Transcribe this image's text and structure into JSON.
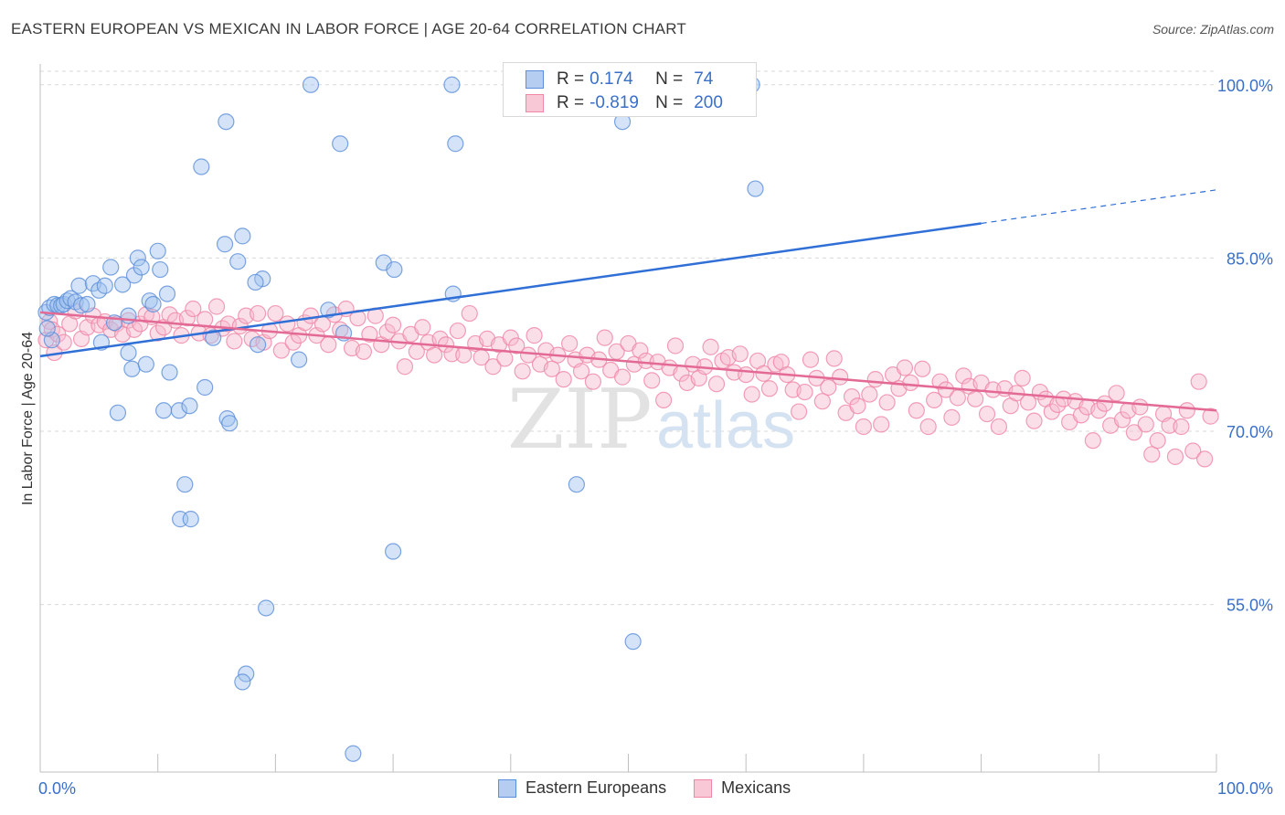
{
  "title": "EASTERN EUROPEAN VS MEXICAN IN LABOR FORCE | AGE 20-64 CORRELATION CHART",
  "source": "Source: ZipAtlas.com",
  "watermark": {
    "zip": "ZIP",
    "atlas": "atlas"
  },
  "legend_stats": [
    {
      "r_label": "R =",
      "r_value": "0.174",
      "n_label": "N =",
      "n_value": "74",
      "color": "#5b8fd9"
    },
    {
      "r_label": "R =",
      "r_value": "-0.819",
      "n_label": "N =",
      "n_value": "200",
      "color": "#ef86a6"
    }
  ],
  "legend_bottom": [
    {
      "label": "Eastern Europeans",
      "color": "#5b8fd9"
    },
    {
      "label": "Mexicans",
      "color": "#ef86a6"
    }
  ],
  "chart_data": {
    "type": "scatter",
    "title": "EASTERN EUROPEAN VS MEXICAN IN LABOR FORCE | AGE 20-64 CORRELATION CHART",
    "xlabel": "",
    "ylabel": "In Labor Force | Age 20-64",
    "xlim": [
      0,
      100
    ],
    "ylim": [
      40.5,
      101.8
    ],
    "x_tick_labels": [
      "0.0%",
      "100.0%"
    ],
    "y_ticks": [
      100,
      85,
      70,
      55
    ],
    "y_tick_labels": [
      "100.0%",
      "85.0%",
      "70.0%",
      "55.0%"
    ],
    "grid": true,
    "series": [
      {
        "name": "Eastern Europeans",
        "color": "#5b8fd9",
        "trend": {
          "x0": 0,
          "y0": 76.5,
          "x1": 80,
          "y1": 88.0,
          "dash_to_x": 100,
          "dash_to_y": 90.9
        },
        "points": [
          [
            0.5,
            80.3
          ],
          [
            0.8,
            80.7
          ],
          [
            1.0,
            77.9
          ],
          [
            0.6,
            78.9
          ],
          [
            1.2,
            81.0
          ],
          [
            1.5,
            80.9
          ],
          [
            1.8,
            80.9
          ],
          [
            2.0,
            81.0
          ],
          [
            2.3,
            81.3
          ],
          [
            2.6,
            81.5
          ],
          [
            3.0,
            81.2
          ],
          [
            3.5,
            80.9
          ],
          [
            4.0,
            81.0
          ],
          [
            3.3,
            82.6
          ],
          [
            4.5,
            82.8
          ],
          [
            5.0,
            82.2
          ],
          [
            5.5,
            82.6
          ],
          [
            6.0,
            84.2
          ],
          [
            5.2,
            77.7
          ],
          [
            6.3,
            79.4
          ],
          [
            7.0,
            82.7
          ],
          [
            7.5,
            76.8
          ],
          [
            7.8,
            75.4
          ],
          [
            8.0,
            83.5
          ],
          [
            8.3,
            85.0
          ],
          [
            8.6,
            84.2
          ],
          [
            9.0,
            75.8
          ],
          [
            9.3,
            81.3
          ],
          [
            9.6,
            81.0
          ],
          [
            10.0,
            85.6
          ],
          [
            10.2,
            84.0
          ],
          [
            10.8,
            81.9
          ],
          [
            11.0,
            75.1
          ],
          [
            6.6,
            71.6
          ],
          [
            10.5,
            71.8
          ],
          [
            11.8,
            71.8
          ],
          [
            12.7,
            72.2
          ],
          [
            12.3,
            65.4
          ],
          [
            11.9,
            62.4
          ],
          [
            12.8,
            62.4
          ],
          [
            14.0,
            73.8
          ],
          [
            13.7,
            92.9
          ],
          [
            14.7,
            78.1
          ],
          [
            15.7,
            86.2
          ],
          [
            15.8,
            96.8
          ],
          [
            15.9,
            71.1
          ],
          [
            16.1,
            70.7
          ],
          [
            16.8,
            84.7
          ],
          [
            17.2,
            86.9
          ],
          [
            18.9,
            83.2
          ],
          [
            18.3,
            82.9
          ],
          [
            18.5,
            77.5
          ],
          [
            19.2,
            54.7
          ],
          [
            23.0,
            100.0
          ],
          [
            25.5,
            94.9
          ],
          [
            25.8,
            78.5
          ],
          [
            22.0,
            76.2
          ],
          [
            17.5,
            49.0
          ],
          [
            17.2,
            48.3
          ],
          [
            26.6,
            42.1
          ],
          [
            29.2,
            84.6
          ],
          [
            30.1,
            84.0
          ],
          [
            30.0,
            59.6
          ],
          [
            35.0,
            100.0
          ],
          [
            35.3,
            94.9
          ],
          [
            35.1,
            81.9
          ],
          [
            45.6,
            65.4
          ],
          [
            50.4,
            51.8
          ],
          [
            60.5,
            100.0
          ],
          [
            60.8,
            91.0
          ],
          [
            47.2,
            100.0
          ],
          [
            49.5,
            96.8
          ],
          [
            7.5,
            80.0
          ],
          [
            24.5,
            80.5
          ]
        ]
      },
      {
        "name": "Mexicans",
        "color": "#ef86a6",
        "trend": {
          "x0": 0,
          "y0": 80.3,
          "x1": 100,
          "y1": 71.8
        },
        "points": [
          [
            0.5,
            77.9
          ],
          [
            0.8,
            79.5
          ],
          [
            1.0,
            78.8
          ],
          [
            1.2,
            76.8
          ],
          [
            1.5,
            78.4
          ],
          [
            2.0,
            77.7
          ],
          [
            2.5,
            79.3
          ],
          [
            3.0,
            80.4
          ],
          [
            3.5,
            78.0
          ],
          [
            4.0,
            79.0
          ],
          [
            4.5,
            80.0
          ],
          [
            5.0,
            79.2
          ],
          [
            5.5,
            79.5
          ],
          [
            6.0,
            78.8
          ],
          [
            6.5,
            79.3
          ],
          [
            7.0,
            78.4
          ],
          [
            7.5,
            79.6
          ],
          [
            8.0,
            78.8
          ],
          [
            8.5,
            79.3
          ],
          [
            9.0,
            80.1
          ],
          [
            9.5,
            79.9
          ],
          [
            10.0,
            78.5
          ],
          [
            10.5,
            79.0
          ],
          [
            11.0,
            80.1
          ],
          [
            11.5,
            79.6
          ],
          [
            12.0,
            78.3
          ],
          [
            12.5,
            79.8
          ],
          [
            13.0,
            80.6
          ],
          [
            13.5,
            78.5
          ],
          [
            14.0,
            79.7
          ],
          [
            14.5,
            78.3
          ],
          [
            15.0,
            80.8
          ],
          [
            15.5,
            78.9
          ],
          [
            16.0,
            79.3
          ],
          [
            16.5,
            77.8
          ],
          [
            17.0,
            79.1
          ],
          [
            17.5,
            80.0
          ],
          [
            18.0,
            78.0
          ],
          [
            18.5,
            80.2
          ],
          [
            19.0,
            77.7
          ],
          [
            19.5,
            78.7
          ],
          [
            20.0,
            80.2
          ],
          [
            20.5,
            77.0
          ],
          [
            21.0,
            79.3
          ],
          [
            21.5,
            77.7
          ],
          [
            22.0,
            78.3
          ],
          [
            22.5,
            79.4
          ],
          [
            23.0,
            80.0
          ],
          [
            23.5,
            78.3
          ],
          [
            24.0,
            79.3
          ],
          [
            24.5,
            77.5
          ],
          [
            25.0,
            80.1
          ],
          [
            25.5,
            78.8
          ],
          [
            26.0,
            80.6
          ],
          [
            26.5,
            77.2
          ],
          [
            27.0,
            79.8
          ],
          [
            27.5,
            76.9
          ],
          [
            28.0,
            78.4
          ],
          [
            28.5,
            80.0
          ],
          [
            29.0,
            77.5
          ],
          [
            29.5,
            78.6
          ],
          [
            30.0,
            79.2
          ],
          [
            30.5,
            77.8
          ],
          [
            31.0,
            75.6
          ],
          [
            31.5,
            78.4
          ],
          [
            32.0,
            76.9
          ],
          [
            32.5,
            79.0
          ],
          [
            33.0,
            77.7
          ],
          [
            33.5,
            76.6
          ],
          [
            34.0,
            78.0
          ],
          [
            34.5,
            77.5
          ],
          [
            35.0,
            76.7
          ],
          [
            35.5,
            78.7
          ],
          [
            36.0,
            76.6
          ],
          [
            36.5,
            80.2
          ],
          [
            37.0,
            77.6
          ],
          [
            37.5,
            76.4
          ],
          [
            38.0,
            78.0
          ],
          [
            38.5,
            75.6
          ],
          [
            39.0,
            77.5
          ],
          [
            39.5,
            76.3
          ],
          [
            40.0,
            78.1
          ],
          [
            40.5,
            77.4
          ],
          [
            41.0,
            75.2
          ],
          [
            41.5,
            76.6
          ],
          [
            42.0,
            78.3
          ],
          [
            42.5,
            75.8
          ],
          [
            43.0,
            77.0
          ],
          [
            43.5,
            75.4
          ],
          [
            44.0,
            76.6
          ],
          [
            44.5,
            74.5
          ],
          [
            45.0,
            77.6
          ],
          [
            45.5,
            76.2
          ],
          [
            46.0,
            75.2
          ],
          [
            46.5,
            76.6
          ],
          [
            47.0,
            74.3
          ],
          [
            47.5,
            76.2
          ],
          [
            48.0,
            78.1
          ],
          [
            48.5,
            75.3
          ],
          [
            49.0,
            76.9
          ],
          [
            49.5,
            74.7
          ],
          [
            50.0,
            77.6
          ],
          [
            50.5,
            75.8
          ],
          [
            51.0,
            77.0
          ],
          [
            51.5,
            76.1
          ],
          [
            52.0,
            74.4
          ],
          [
            52.5,
            76.0
          ],
          [
            53.0,
            72.7
          ],
          [
            53.5,
            75.5
          ],
          [
            54.0,
            77.4
          ],
          [
            54.5,
            75.0
          ],
          [
            55.0,
            74.2
          ],
          [
            55.5,
            75.8
          ],
          [
            56.0,
            74.6
          ],
          [
            56.5,
            75.6
          ],
          [
            57.0,
            77.3
          ],
          [
            57.5,
            74.1
          ],
          [
            58.0,
            76.1
          ],
          [
            58.5,
            76.4
          ],
          [
            59.0,
            75.1
          ],
          [
            59.5,
            76.7
          ],
          [
            60.0,
            74.9
          ],
          [
            60.5,
            73.2
          ],
          [
            61.0,
            76.1
          ],
          [
            61.5,
            75.0
          ],
          [
            62.0,
            73.7
          ],
          [
            62.5,
            75.8
          ],
          [
            63.0,
            76.0
          ],
          [
            63.5,
            74.9
          ],
          [
            64.0,
            73.6
          ],
          [
            64.5,
            71.7
          ],
          [
            65.0,
            73.4
          ],
          [
            65.5,
            76.2
          ],
          [
            66.0,
            74.6
          ],
          [
            66.5,
            72.6
          ],
          [
            67.0,
            73.8
          ],
          [
            67.5,
            76.3
          ],
          [
            68.0,
            74.7
          ],
          [
            68.5,
            71.6
          ],
          [
            69.0,
            73.0
          ],
          [
            69.5,
            72.2
          ],
          [
            70.0,
            70.4
          ],
          [
            70.5,
            73.2
          ],
          [
            71.0,
            74.5
          ],
          [
            71.5,
            70.6
          ],
          [
            72.0,
            72.5
          ],
          [
            72.5,
            74.9
          ],
          [
            73.0,
            73.7
          ],
          [
            73.5,
            75.5
          ],
          [
            74.0,
            74.2
          ],
          [
            74.5,
            71.8
          ],
          [
            75.0,
            75.4
          ],
          [
            75.5,
            70.4
          ],
          [
            76.0,
            72.7
          ],
          [
            76.5,
            74.3
          ],
          [
            77.0,
            73.6
          ],
          [
            77.5,
            71.2
          ],
          [
            78.0,
            72.9
          ],
          [
            78.5,
            74.8
          ],
          [
            79.0,
            73.9
          ],
          [
            79.5,
            72.8
          ],
          [
            80.0,
            74.2
          ],
          [
            80.5,
            71.5
          ],
          [
            81.0,
            73.6
          ],
          [
            81.5,
            70.4
          ],
          [
            82.0,
            73.7
          ],
          [
            82.5,
            72.2
          ],
          [
            83.0,
            73.3
          ],
          [
            83.5,
            74.6
          ],
          [
            84.0,
            72.5
          ],
          [
            84.5,
            70.9
          ],
          [
            85.0,
            73.4
          ],
          [
            85.5,
            72.8
          ],
          [
            86.0,
            71.7
          ],
          [
            86.5,
            72.3
          ],
          [
            87.0,
            72.8
          ],
          [
            87.5,
            70.8
          ],
          [
            88.0,
            72.6
          ],
          [
            88.5,
            71.4
          ],
          [
            89.0,
            72.1
          ],
          [
            89.5,
            69.2
          ],
          [
            90.0,
            71.8
          ],
          [
            90.5,
            72.4
          ],
          [
            91.0,
            70.5
          ],
          [
            91.5,
            73.3
          ],
          [
            92.0,
            71.0
          ],
          [
            92.5,
            71.8
          ],
          [
            93.0,
            69.9
          ],
          [
            93.5,
            72.1
          ],
          [
            94.0,
            70.6
          ],
          [
            94.5,
            68.0
          ],
          [
            95.0,
            69.2
          ],
          [
            95.5,
            71.5
          ],
          [
            96.0,
            70.5
          ],
          [
            96.5,
            67.8
          ],
          [
            97.0,
            70.4
          ],
          [
            97.5,
            71.8
          ],
          [
            98.0,
            68.3
          ],
          [
            98.5,
            74.3
          ],
          [
            99.0,
            67.6
          ],
          [
            99.5,
            71.3
          ]
        ]
      }
    ]
  }
}
